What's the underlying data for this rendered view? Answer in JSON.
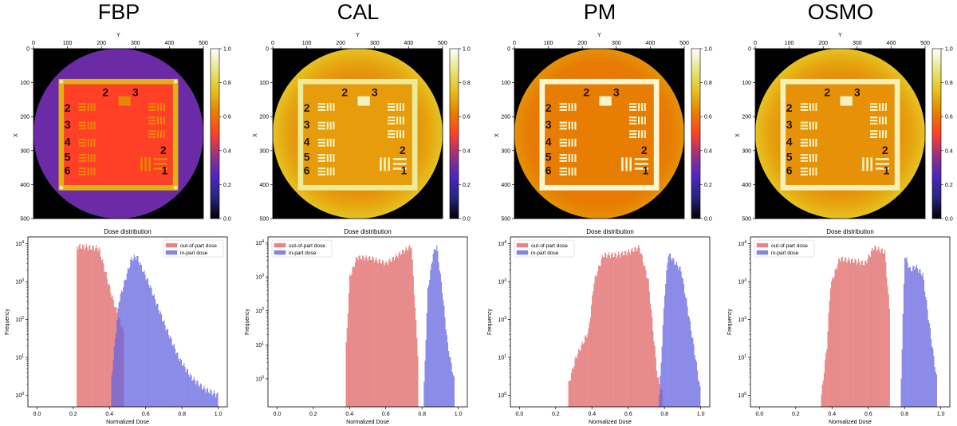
{
  "columns": [
    {
      "title": "FBP",
      "rings": [
        0.3,
        0.3,
        0.3,
        0.3
      ],
      "corner": 0.1,
      "frame": 0.72,
      "inner": 0.5,
      "chart": 0.56
    },
    {
      "title": "CAL",
      "rings": [
        0.5,
        0.62,
        0.7,
        0.76
      ],
      "corner": 0.0,
      "frame": 0.9,
      "inner": 0.68,
      "chart": 0.86
    },
    {
      "title": "PM",
      "rings": [
        0.5,
        0.6,
        0.62,
        0.66
      ],
      "corner": 0.0,
      "frame": 0.96,
      "inner": 0.62,
      "chart": 0.87
    },
    {
      "title": "OSMO",
      "rings": [
        0.5,
        0.62,
        0.7,
        0.76
      ],
      "corner": 0.0,
      "frame": 0.93,
      "inner": 0.66,
      "chart": 0.86
    }
  ],
  "image_axes": {
    "xlabel": "Y",
    "ylabel": "X",
    "ticks": [
      0,
      100,
      200,
      300,
      400,
      500
    ],
    "colorbar_ticks": [
      0.0,
      0.2,
      0.4,
      0.6,
      0.8,
      1.0
    ],
    "colormap": "CMRmap",
    "chart_labels": [
      "2",
      "3",
      "2",
      "3",
      "4",
      "5",
      "6",
      "2",
      "1"
    ]
  },
  "chart_data": [
    {
      "type": "histogram",
      "title": "Dose distribution",
      "xlabel": "Normalized Dose",
      "ylabel": "Frequency",
      "yscale": "log",
      "xlim": [
        -0.05,
        1.05
      ],
      "ylim": [
        0.5,
        15000
      ],
      "xticks": [
        0.0,
        0.2,
        0.4,
        0.6,
        0.8,
        1.0
      ],
      "yticks": [
        1,
        10,
        100,
        1000,
        10000
      ],
      "legend_position": "top-right",
      "series": [
        {
          "name": "out-of-part dose",
          "color": "#e06666",
          "range": [
            0.13,
            0.5
          ],
          "peaks": [
            {
              "x": 0.22,
              "y": 8500
            },
            {
              "x": 0.28,
              "y": 8000
            },
            {
              "x": 0.34,
              "y": 7500
            },
            {
              "x": 0.42,
              "y": 300
            },
            {
              "x": 0.48,
              "y": 40
            }
          ]
        },
        {
          "name": "in-part dose",
          "color": "#6666e0",
          "range": [
            0.41,
            1.0
          ],
          "peaks": [
            {
              "x": 0.41,
              "y": 3
            },
            {
              "x": 0.45,
              "y": 300
            },
            {
              "x": 0.52,
              "y": 4000
            },
            {
              "x": 0.55,
              "y": 4500
            },
            {
              "x": 0.62,
              "y": 800
            },
            {
              "x": 0.7,
              "y": 80
            },
            {
              "x": 0.78,
              "y": 10
            },
            {
              "x": 0.85,
              "y": 3
            },
            {
              "x": 0.92,
              "y": 1.5
            },
            {
              "x": 1.0,
              "y": 1
            }
          ]
        }
      ]
    },
    {
      "type": "histogram",
      "title": "Dose distribution",
      "xlabel": "Normalized Dose",
      "ylabel": "Frequency",
      "yscale": "log",
      "xlim": [
        -0.05,
        1.05
      ],
      "ylim": [
        0.15,
        15000
      ],
      "xticks": [
        0.0,
        0.2,
        0.4,
        0.6,
        0.8,
        1.0
      ],
      "yticks": [
        1,
        10,
        100,
        1000,
        10000
      ],
      "legend_position": "top-left",
      "series": [
        {
          "name": "out-of-part dose",
          "color": "#e06666",
          "range": [
            0.38,
            0.78
          ],
          "peaks": [
            {
              "x": 0.38,
              "y": 10
            },
            {
              "x": 0.4,
              "y": 1000
            },
            {
              "x": 0.44,
              "y": 3800
            },
            {
              "x": 0.52,
              "y": 3500
            },
            {
              "x": 0.6,
              "y": 2500
            },
            {
              "x": 0.68,
              "y": 5000
            },
            {
              "x": 0.74,
              "y": 8000
            },
            {
              "x": 0.78,
              "y": 2
            }
          ]
        },
        {
          "name": "in-part dose",
          "color": "#6666e0",
          "range": [
            0.81,
            0.98
          ],
          "peaks": [
            {
              "x": 0.81,
              "y": 0.7
            },
            {
              "x": 0.83,
              "y": 400
            },
            {
              "x": 0.86,
              "y": 5000
            },
            {
              "x": 0.88,
              "y": 8000
            },
            {
              "x": 0.91,
              "y": 400
            },
            {
              "x": 0.94,
              "y": 10
            },
            {
              "x": 0.98,
              "y": 0.7
            }
          ]
        }
      ]
    },
    {
      "type": "histogram",
      "title": "Dose distribution",
      "xlabel": "Normalized Dose",
      "ylabel": "Frequency",
      "yscale": "log",
      "xlim": [
        -0.05,
        1.05
      ],
      "ylim": [
        0.5,
        15000
      ],
      "xticks": [
        0.0,
        0.2,
        0.4,
        0.6,
        0.8,
        1.0
      ],
      "yticks": [
        1,
        10,
        100,
        1000,
        10000
      ],
      "legend_position": "top-left",
      "series": [
        {
          "name": "out-of-part dose",
          "color": "#e06666",
          "range": [
            0.27,
            0.79
          ],
          "peaks": [
            {
              "x": 0.27,
              "y": 2
            },
            {
              "x": 0.31,
              "y": 10
            },
            {
              "x": 0.35,
              "y": 25
            },
            {
              "x": 0.38,
              "y": 50
            },
            {
              "x": 0.41,
              "y": 1000
            },
            {
              "x": 0.46,
              "y": 5000
            },
            {
              "x": 0.54,
              "y": 5000
            },
            {
              "x": 0.6,
              "y": 6000
            },
            {
              "x": 0.66,
              "y": 8000
            },
            {
              "x": 0.71,
              "y": 1000
            },
            {
              "x": 0.76,
              "y": 3
            },
            {
              "x": 0.79,
              "y": 1
            }
          ]
        },
        {
          "name": "in-part dose",
          "color": "#6666e0",
          "range": [
            0.77,
            1.0
          ],
          "peaks": [
            {
              "x": 0.77,
              "y": 1
            },
            {
              "x": 0.8,
              "y": 500
            },
            {
              "x": 0.82,
              "y": 5500
            },
            {
              "x": 0.86,
              "y": 3000
            },
            {
              "x": 0.89,
              "y": 2000
            },
            {
              "x": 0.92,
              "y": 300
            },
            {
              "x": 0.96,
              "y": 20
            },
            {
              "x": 1.0,
              "y": 1
            }
          ]
        }
      ]
    },
    {
      "type": "histogram",
      "title": "Dose distribution",
      "xlabel": "Normalized Dose",
      "ylabel": "Frequency",
      "yscale": "log",
      "xlim": [
        -0.05,
        1.05
      ],
      "ylim": [
        0.5,
        15000
      ],
      "xticks": [
        0.0,
        0.2,
        0.4,
        0.6,
        0.8,
        1.0
      ],
      "yticks": [
        1,
        10,
        100,
        1000,
        10000
      ],
      "legend_position": "top-left",
      "series": [
        {
          "name": "out-of-part dose",
          "color": "#e06666",
          "range": [
            0.34,
            0.72
          ],
          "peaks": [
            {
              "x": 0.34,
              "y": 1
            },
            {
              "x": 0.37,
              "y": 20
            },
            {
              "x": 0.39,
              "y": 800
            },
            {
              "x": 0.44,
              "y": 4000
            },
            {
              "x": 0.52,
              "y": 3500
            },
            {
              "x": 0.58,
              "y": 3000
            },
            {
              "x": 0.63,
              "y": 8000
            },
            {
              "x": 0.69,
              "y": 6000
            },
            {
              "x": 0.72,
              "y": 100
            }
          ]
        },
        {
          "name": "in-part dose",
          "color": "#6666e0",
          "range": [
            0.78,
            0.98
          ],
          "peaks": [
            {
              "x": 0.78,
              "y": 3
            },
            {
              "x": 0.8,
              "y": 5000
            },
            {
              "x": 0.83,
              "y": 2000
            },
            {
              "x": 0.86,
              "y": 2500
            },
            {
              "x": 0.9,
              "y": 1500
            },
            {
              "x": 0.94,
              "y": 50
            },
            {
              "x": 0.98,
              "y": 2
            }
          ]
        }
      ]
    }
  ]
}
